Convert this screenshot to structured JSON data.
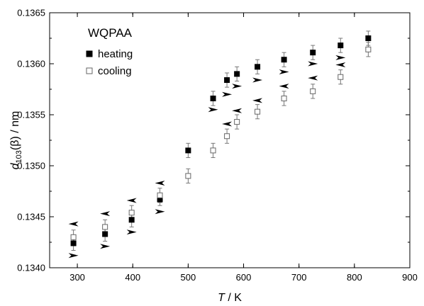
{
  "chart_data": {
    "type": "scatter",
    "title": "WQPAA",
    "xlabel": {
      "italic": "T",
      "rest": " / K"
    },
    "ylabel": {
      "italic": "d",
      "sub": "103",
      "rest": "(β) / nm"
    },
    "xlim": [
      250,
      900
    ],
    "ylim": [
      0.134,
      0.1365
    ],
    "xticks": [
      "300",
      "400",
      "500",
      "600",
      "700",
      "800",
      "900"
    ],
    "yticks": [
      "0.1340",
      "0.1345",
      "0.1350",
      "0.1355",
      "0.1360",
      "0.1365"
    ],
    "grid": false,
    "legend_position": "top-left",
    "series": [
      {
        "name": "heating",
        "marker": "filled-square",
        "color": "#000000",
        "points": [
          {
            "x": 293,
            "y": 0.13424,
            "err": 7e-05
          },
          {
            "x": 350,
            "y": 0.13433,
            "err": 7e-05
          },
          {
            "x": 398,
            "y": 0.13447,
            "err": 7e-05
          },
          {
            "x": 449,
            "y": 0.13467,
            "err": 6e-05
          },
          {
            "x": 500,
            "y": 0.13515,
            "err": 7e-05
          },
          {
            "x": 545,
            "y": 0.13566,
            "err": 7e-05
          },
          {
            "x": 570,
            "y": 0.13584,
            "err": 7e-05
          },
          {
            "x": 588,
            "y": 0.1359,
            "err": 7e-05
          },
          {
            "x": 625,
            "y": 0.13597,
            "err": 7e-05
          },
          {
            "x": 673,
            "y": 0.13604,
            "err": 7e-05
          },
          {
            "x": 725,
            "y": 0.13611,
            "err": 7e-05
          },
          {
            "x": 775,
            "y": 0.13618,
            "err": 7e-05
          },
          {
            "x": 825,
            "y": 0.13625,
            "err": 7e-05
          }
        ]
      },
      {
        "name": "cooling",
        "marker": "open-square",
        "color": "#000000",
        "points": [
          {
            "x": 293,
            "y": 0.1343,
            "err": 7e-05
          },
          {
            "x": 350,
            "y": 0.1344,
            "err": 7e-05
          },
          {
            "x": 398,
            "y": 0.13454,
            "err": 7e-05
          },
          {
            "x": 449,
            "y": 0.13471,
            "err": 7e-05
          },
          {
            "x": 500,
            "y": 0.1349,
            "err": 7e-05
          },
          {
            "x": 545,
            "y": 0.13515,
            "err": 7e-05
          },
          {
            "x": 570,
            "y": 0.13529,
            "err": 7e-05
          },
          {
            "x": 588,
            "y": 0.13543,
            "err": 7e-05
          },
          {
            "x": 625,
            "y": 0.13553,
            "err": 7e-05
          },
          {
            "x": 673,
            "y": 0.13566,
            "err": 7e-05
          },
          {
            "x": 725,
            "y": 0.13573,
            "err": 7e-05
          },
          {
            "x": 775,
            "y": 0.13587,
            "err": 7e-05
          },
          {
            "x": 825,
            "y": 0.13614,
            "err": 7e-05
          }
        ]
      }
    ],
    "arrows": [
      {
        "x": 293,
        "y": 0.13412,
        "direction": "right"
      },
      {
        "x": 293,
        "y": 0.13443,
        "direction": "left"
      },
      {
        "x": 350,
        "y": 0.13421,
        "direction": "right"
      },
      {
        "x": 350,
        "y": 0.13453,
        "direction": "left"
      },
      {
        "x": 398,
        "y": 0.13435,
        "direction": "right"
      },
      {
        "x": 398,
        "y": 0.13466,
        "direction": "left"
      },
      {
        "x": 449,
        "y": 0.13455,
        "direction": "right"
      },
      {
        "x": 449,
        "y": 0.13483,
        "direction": "left"
      },
      {
        "x": 545,
        "y": 0.13555,
        "direction": "right"
      },
      {
        "x": 570,
        "y": 0.13541,
        "direction": "left"
      },
      {
        "x": 570,
        "y": 0.1357,
        "direction": "right"
      },
      {
        "x": 588,
        "y": 0.13554,
        "direction": "left"
      },
      {
        "x": 588,
        "y": 0.13578,
        "direction": "right"
      },
      {
        "x": 625,
        "y": 0.13564,
        "direction": "left"
      },
      {
        "x": 625,
        "y": 0.13584,
        "direction": "right"
      },
      {
        "x": 673,
        "y": 0.13578,
        "direction": "left"
      },
      {
        "x": 673,
        "y": 0.13592,
        "direction": "right"
      },
      {
        "x": 725,
        "y": 0.13586,
        "direction": "left"
      },
      {
        "x": 725,
        "y": 0.136,
        "direction": "right"
      },
      {
        "x": 775,
        "y": 0.13599,
        "direction": "left"
      },
      {
        "x": 775,
        "y": 0.13606,
        "direction": "right"
      }
    ]
  }
}
